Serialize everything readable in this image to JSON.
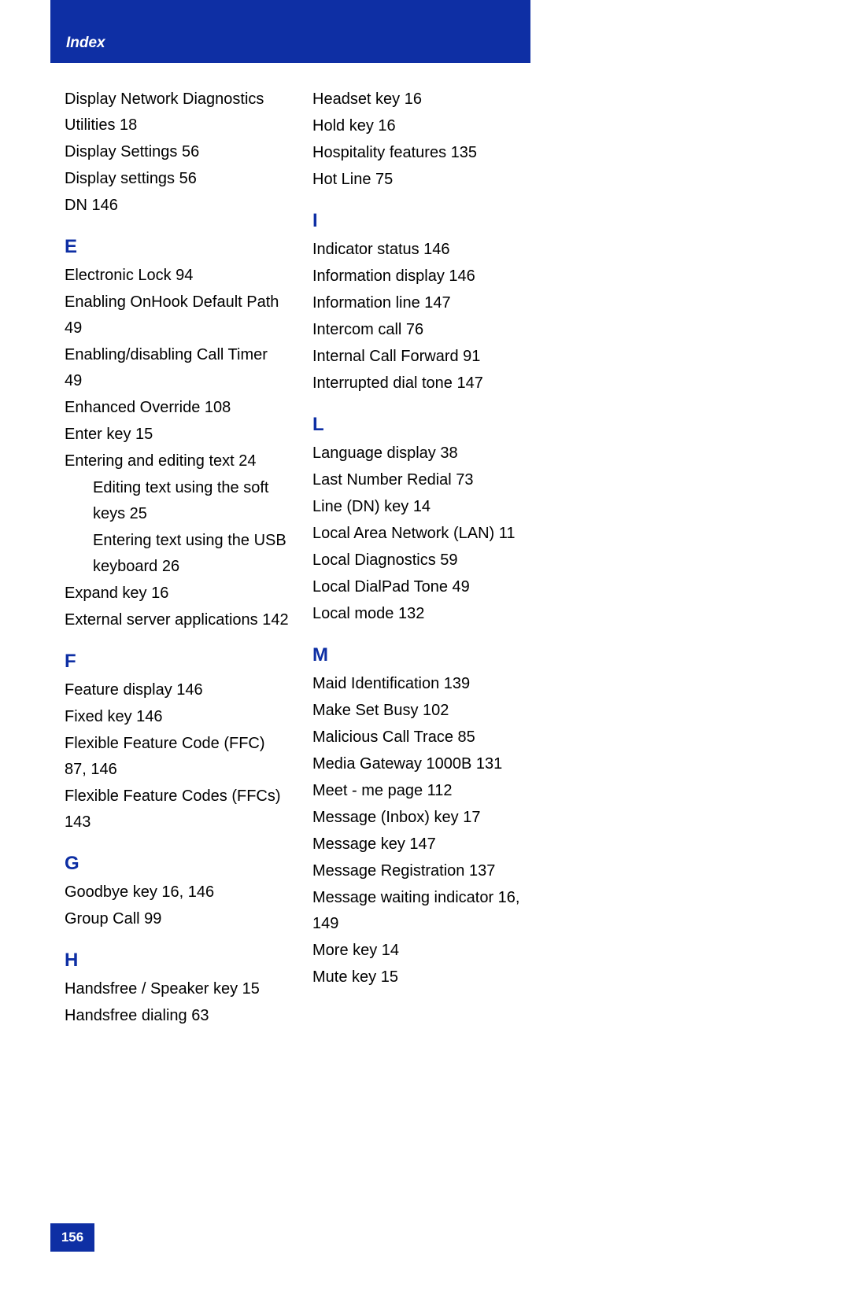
{
  "header": {
    "title": "Index"
  },
  "footer": {
    "page": "156"
  },
  "colors": {
    "brand": "#0e2fa4",
    "text": "#000000",
    "bg": "#ffffff"
  },
  "left": {
    "preD": [
      "Display Network Diagnostics Utilities 18",
      "Display Settings 56",
      "Display settings 56",
      "DN 146"
    ],
    "E": {
      "letter": "E",
      "items": [
        "Electronic Lock 94",
        "Enabling OnHook Default Path 49",
        "Enabling/disabling Call Timer 49",
        "Enhanced Override 108",
        "Enter key 15",
        "Entering and editing text 24"
      ],
      "subitems": [
        "Editing text using the soft keys 25",
        "Entering text using the USB keyboard 26"
      ],
      "items2": [
        "Expand key 16",
        "External server applications 142"
      ]
    },
    "F": {
      "letter": "F",
      "items": [
        "Feature display 146",
        "Fixed key 146",
        "Flexible Feature Code (FFC) 87, 146",
        "Flexible Feature Codes (FFCs) 143"
      ]
    },
    "G": {
      "letter": "G",
      "items": [
        "Goodbye key 16, 146",
        "Group Call 99"
      ]
    },
    "H": {
      "letter": "H",
      "items": [
        "Handsfree / Speaker key 15",
        "Handsfree dialing 63"
      ]
    }
  },
  "right": {
    "preH": [
      "Headset key 16",
      "Hold key 16",
      "Hospitality features 135",
      "Hot Line 75"
    ],
    "I": {
      "letter": "I",
      "items": [
        "Indicator status 146",
        "Information display 146",
        "Information line 147",
        "Intercom call 76",
        "Internal Call Forward 91",
        "Interrupted dial tone 147"
      ]
    },
    "L": {
      "letter": "L",
      "items": [
        "Language display 38",
        "Last Number Redial 73",
        "Line (DN) key 14",
        "Local Area Network (LAN) 11",
        "Local Diagnostics 59",
        "Local DialPad Tone 49",
        "Local mode 132"
      ]
    },
    "M": {
      "letter": "M",
      "items": [
        "Maid Identification 139",
        "Make Set Busy 102",
        "Malicious Call Trace 85",
        "Media Gateway 1000B 131",
        "Meet - me page 112",
        "Message (Inbox) key 17",
        "Message key 147",
        "Message Registration 137",
        "Message waiting indicator 16, 149",
        "More key 14",
        "Mute key 15"
      ]
    }
  }
}
